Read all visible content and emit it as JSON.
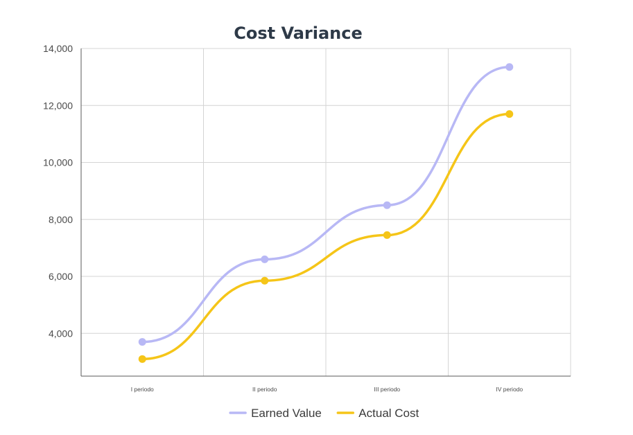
{
  "chart_data": {
    "type": "line",
    "title": "Cost Variance",
    "categories": [
      "I periodo",
      "II periodo",
      "III periodo",
      "IV periodo"
    ],
    "series": [
      {
        "name": "Earned Value",
        "color": "#b8b8f5",
        "values": [
          3700,
          6600,
          8500,
          13350
        ]
      },
      {
        "name": "Actual Cost",
        "color": "#f5c518",
        "values": [
          3100,
          5850,
          7450,
          11700
        ]
      }
    ],
    "yticks": [
      4000,
      6000,
      8000,
      10000,
      12000,
      14000
    ],
    "ytick_labels": [
      "4,000",
      "6,000",
      "8,000",
      "10,000",
      "12,000",
      "14,000"
    ],
    "ylim": [
      2500,
      14000
    ],
    "xlabel": "",
    "ylabel": "",
    "grid": true,
    "smooth": true,
    "legend": "bottom-center"
  }
}
